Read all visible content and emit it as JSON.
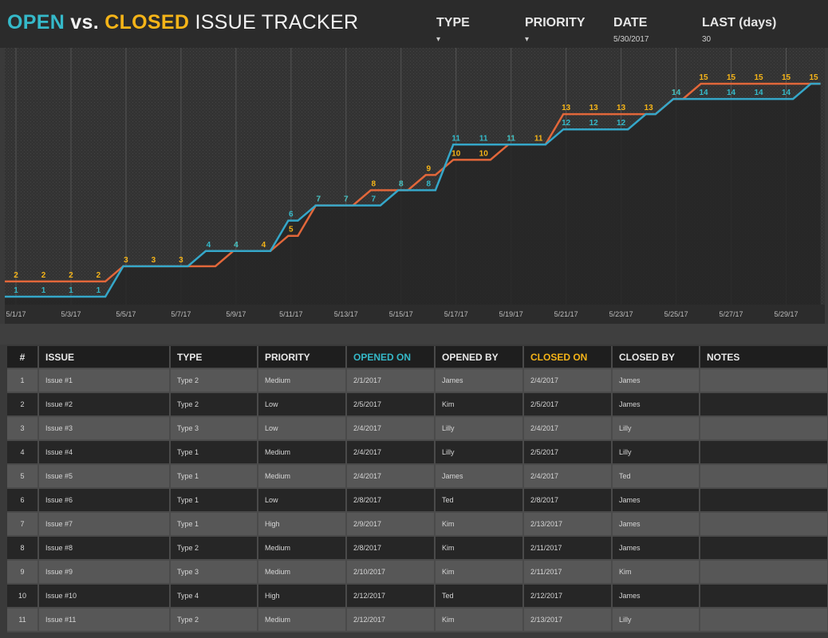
{
  "header": {
    "title_open": "OPEN",
    "title_vs": " vs. ",
    "title_closed": "CLOSED",
    "title_rest": " ISSUE TRACKER",
    "filters": [
      {
        "label": "TYPE",
        "value": "▾"
      },
      {
        "label": "PRIORITY",
        "value": "▾"
      },
      {
        "label": "DATE",
        "value": "5/30/2017"
      },
      {
        "label": "LAST (days)",
        "value": "30"
      }
    ]
  },
  "colors": {
    "open": "#35b9c9",
    "closed": "#f5b418",
    "closed_line": "#e2673a",
    "open_line": "#35a7c9"
  },
  "chart_data": {
    "type": "line",
    "x_tick_labels": [
      "5/1/17",
      "5/3/17",
      "5/5/17",
      "5/7/17",
      "5/9/17",
      "5/11/17",
      "5/13/17",
      "5/15/17",
      "5/17/17",
      "5/19/17",
      "5/21/17",
      "5/23/17",
      "5/25/17",
      "5/27/17",
      "5/29/17"
    ],
    "x": [
      "5/1",
      "5/2",
      "5/3",
      "5/4",
      "5/5",
      "5/6",
      "5/7",
      "5/8",
      "5/9",
      "5/10",
      "5/11",
      "5/12",
      "5/13",
      "5/14",
      "5/15",
      "5/16",
      "5/17",
      "5/18",
      "5/19",
      "5/20",
      "5/21",
      "5/22",
      "5/23",
      "5/24",
      "5/25",
      "5/26",
      "5/27",
      "5/28",
      "5/29",
      "5/30"
    ],
    "ylim": [
      0,
      17
    ],
    "series": [
      {
        "key": "closed",
        "values": [
          2,
          2,
          2,
          2,
          3,
          3,
          3,
          3,
          4,
          4,
          5,
          7,
          7,
          8,
          8,
          9,
          10,
          10,
          11,
          11,
          13,
          13,
          13,
          13,
          14,
          15,
          15,
          15,
          15,
          15
        ],
        "labels_at": [
          0,
          1,
          2,
          3,
          4,
          5,
          6,
          8,
          9,
          10,
          11,
          12,
          13,
          14,
          15,
          16,
          17,
          18,
          19,
          20,
          21,
          22,
          23,
          24,
          25,
          26,
          27,
          28,
          29
        ]
      },
      {
        "key": "open",
        "values": [
          1,
          1,
          1,
          1,
          3,
          3,
          3,
          4,
          4,
          4,
          6,
          7,
          7,
          7,
          8,
          8,
          11,
          11,
          11,
          11,
          12,
          12,
          12,
          13,
          14,
          14,
          14,
          14,
          14,
          15
        ],
        "labels_at": [
          0,
          1,
          2,
          3,
          7,
          8,
          10,
          11,
          12,
          13,
          14,
          15,
          16,
          17,
          18,
          20,
          21,
          22,
          24,
          25,
          26,
          27,
          28
        ]
      }
    ]
  },
  "table": {
    "columns": [
      "#",
      "ISSUE",
      "TYPE",
      "PRIORITY",
      "OPENED ON",
      "OPENED BY",
      "CLOSED ON",
      "CLOSED BY",
      "NOTES"
    ],
    "rows": [
      [
        "1",
        "Issue #1",
        "Type 2",
        "Medium",
        "2/1/2017",
        "James",
        "2/4/2017",
        "James",
        ""
      ],
      [
        "2",
        "Issue #2",
        "Type 2",
        "Low",
        "2/5/2017",
        "Kim",
        "2/5/2017",
        "James",
        ""
      ],
      [
        "3",
        "Issue #3",
        "Type 3",
        "Low",
        "2/4/2017",
        "Lilly",
        "2/4/2017",
        "Lilly",
        ""
      ],
      [
        "4",
        "Issue #4",
        "Type 1",
        "Medium",
        "2/4/2017",
        "Lilly",
        "2/5/2017",
        "Lilly",
        ""
      ],
      [
        "5",
        "Issue #5",
        "Type 1",
        "Medium",
        "2/4/2017",
        "James",
        "2/4/2017",
        "Ted",
        ""
      ],
      [
        "6",
        "Issue #6",
        "Type 1",
        "Low",
        "2/8/2017",
        "Ted",
        "2/8/2017",
        "James",
        ""
      ],
      [
        "7",
        "Issue #7",
        "Type 1",
        "High",
        "2/9/2017",
        "Kim",
        "2/13/2017",
        "James",
        ""
      ],
      [
        "8",
        "Issue #8",
        "Type 2",
        "Medium",
        "2/8/2017",
        "Kim",
        "2/11/2017",
        "James",
        ""
      ],
      [
        "9",
        "Issue #9",
        "Type 3",
        "Medium",
        "2/10/2017",
        "Kim",
        "2/11/2017",
        "Kim",
        ""
      ],
      [
        "10",
        "Issue #10",
        "Type 4",
        "High",
        "2/12/2017",
        "Ted",
        "2/12/2017",
        "James",
        ""
      ],
      [
        "11",
        "Issue #11",
        "Type 2",
        "Medium",
        "2/12/2017",
        "Kim",
        "2/13/2017",
        "Lilly",
        ""
      ]
    ]
  }
}
